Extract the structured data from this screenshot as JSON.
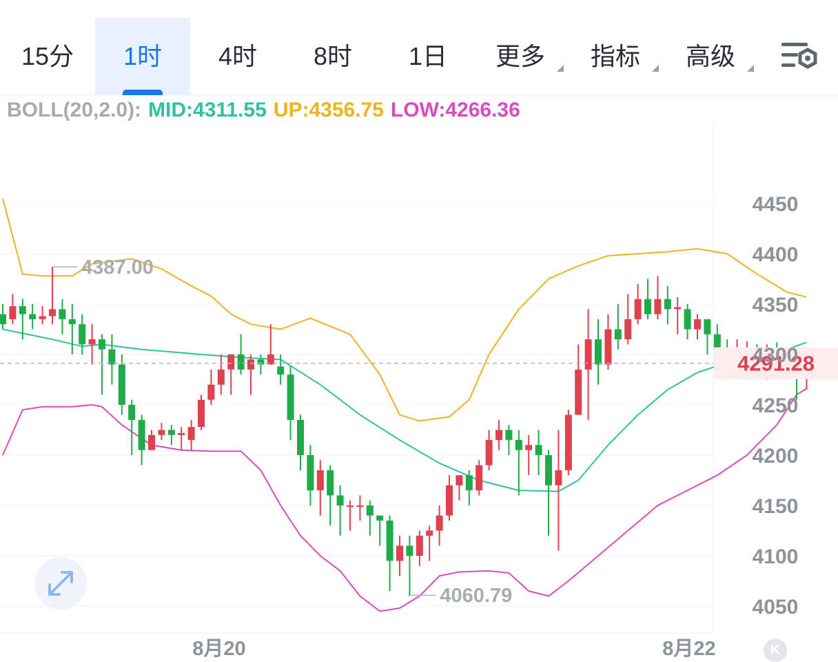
{
  "toolbar": {
    "tabs": [
      {
        "label": "15分",
        "active": false,
        "has_menu": false
      },
      {
        "label": "1时",
        "active": true,
        "has_menu": false
      },
      {
        "label": "4时",
        "active": false,
        "has_menu": false
      },
      {
        "label": "8时",
        "active": false,
        "has_menu": false
      },
      {
        "label": "1日",
        "active": false,
        "has_menu": false
      },
      {
        "label": "更多",
        "active": false,
        "has_menu": true
      },
      {
        "label": "指标",
        "active": false,
        "has_menu": true
      },
      {
        "label": "高级",
        "active": false,
        "has_menu": true
      }
    ],
    "settings_icon": "chart-settings-gear-icon"
  },
  "indicator": {
    "name": "BOLL(20,2.0):",
    "mid_label": "MID:4311.55",
    "up_label": "UP:4356.75",
    "low_label": "LOW:4266.36",
    "colors": {
      "name": "#aaaaaa",
      "mid": "#2fc1a0",
      "up": "#efb320",
      "low": "#d94cc0"
    }
  },
  "chart_data": {
    "type": "candlestick",
    "y_axis": {
      "min": 4035,
      "max": 4480,
      "ticks": [
        4450,
        4400,
        4350,
        4300,
        4250,
        4200,
        4150,
        4100,
        4050
      ]
    },
    "x_labels": [
      "8月20",
      "8月22"
    ],
    "current_price": "4291.28",
    "current_price_value": 4291.28,
    "high_marker": {
      "label": "4387.00",
      "value": 4387.0
    },
    "low_marker": {
      "label": "4060.79",
      "value": 4060.79
    },
    "colors": {
      "up_candle": "#e0414f",
      "down_candle": "#1fab4a",
      "mid_line": "#2fc1a0",
      "upper_band": "#efb320",
      "lower_band": "#d94cc0",
      "price_line": "#b5b5b5",
      "price_label_bg": "#fdecee",
      "price_label_text": "#e0414f"
    },
    "candles": [
      [
        4340,
        4330,
        4350,
        4325
      ],
      [
        4335,
        4348,
        4360,
        4330
      ],
      [
        4348,
        4340,
        4355,
        4315
      ],
      [
        4340,
        4335,
        4350,
        4325
      ],
      [
        4335,
        4338,
        4348,
        4330
      ],
      [
        4338,
        4345,
        4387,
        4330
      ],
      [
        4345,
        4335,
        4355,
        4320
      ],
      [
        4335,
        4330,
        4350,
        4300
      ],
      [
        4330,
        4310,
        4340,
        4300
      ],
      [
        4310,
        4315,
        4330,
        4290
      ],
      [
        4315,
        4305,
        4320,
        4260
      ],
      [
        4305,
        4290,
        4320,
        4270
      ],
      [
        4290,
        4250,
        4300,
        4240
      ],
      [
        4250,
        4235,
        4255,
        4200
      ],
      [
        4235,
        4205,
        4240,
        4190
      ],
      [
        4205,
        4220,
        4225,
        4210
      ],
      [
        4220,
        4225,
        4232,
        4215
      ],
      [
        4225,
        4220,
        4230,
        4210
      ],
      [
        4220,
        4222,
        4228,
        4205
      ],
      [
        4215,
        4228,
        4235,
        4205
      ],
      [
        4228,
        4255,
        4260,
        4225
      ],
      [
        4255,
        4270,
        4285,
        4250
      ],
      [
        4270,
        4285,
        4300,
        4260
      ],
      [
        4285,
        4300,
        4300,
        4260
      ],
      [
        4300,
        4285,
        4320,
        4280
      ],
      [
        4285,
        4295,
        4300,
        4260
      ],
      [
        4295,
        4290,
        4300,
        4280
      ],
      [
        4290,
        4300,
        4330,
        4290
      ],
      [
        4288,
        4280,
        4300,
        4270
      ],
      [
        4280,
        4235,
        4288,
        4215
      ],
      [
        4235,
        4200,
        4240,
        4185
      ],
      [
        4200,
        4165,
        4210,
        4150
      ],
      [
        4165,
        4185,
        4195,
        4140
      ],
      [
        4185,
        4160,
        4190,
        4130
      ],
      [
        4160,
        4150,
        4170,
        4120
      ],
      [
        4150,
        4150,
        4155,
        4125
      ],
      [
        4150,
        4150,
        4160,
        4135
      ],
      [
        4150,
        4140,
        4155,
        4120
      ],
      [
        4140,
        4135,
        4140,
        4110
      ],
      [
        4135,
        4095,
        4140,
        4065
      ],
      [
        4095,
        4110,
        4120,
        4080
      ],
      [
        4110,
        4100,
        4120,
        4060
      ],
      [
        4100,
        4120,
        4125,
        4090
      ],
      [
        4120,
        4125,
        4130,
        4095
      ],
      [
        4125,
        4140,
        4150,
        4110
      ],
      [
        4140,
        4170,
        4180,
        4135
      ],
      [
        4170,
        4180,
        4180,
        4155
      ],
      [
        4180,
        4165,
        4185,
        4150
      ],
      [
        4165,
        4190,
        4195,
        4160
      ],
      [
        4190,
        4215,
        4225,
        4185
      ],
      [
        4215,
        4225,
        4235,
        4205
      ],
      [
        4225,
        4215,
        4230,
        4200
      ],
      [
        4215,
        4205,
        4225,
        4160
      ],
      [
        4205,
        4210,
        4220,
        4180
      ],
      [
        4210,
        4200,
        4225,
        4180
      ],
      [
        4200,
        4170,
        4205,
        4120
      ],
      [
        4170,
        4185,
        4225,
        4105
      ],
      [
        4185,
        4240,
        4245,
        4180
      ],
      [
        4240,
        4285,
        4310,
        4280
      ],
      [
        4285,
        4315,
        4345,
        4235
      ],
      [
        4315,
        4290,
        4335,
        4270
      ],
      [
        4290,
        4325,
        4340,
        4285
      ],
      [
        4325,
        4315,
        4350,
        4305
      ],
      [
        4315,
        4335,
        4360,
        4310
      ],
      [
        4335,
        4355,
        4370,
        4330
      ],
      [
        4355,
        4340,
        4375,
        4335
      ],
      [
        4340,
        4355,
        4378,
        4335
      ],
      [
        4355,
        4345,
        4368,
        4330
      ],
      [
        4345,
        4347,
        4357,
        4320
      ],
      [
        4345,
        4325,
        4350,
        4315
      ],
      [
        4325,
        4335,
        4340,
        4315
      ],
      [
        4335,
        4320,
        4335,
        4300
      ],
      [
        4320,
        4305,
        4330,
        4280
      ],
      [
        4305,
        4298,
        4315,
        4290
      ],
      [
        4298,
        4305,
        4315,
        4285
      ],
      [
        4305,
        4306,
        4313,
        4290
      ],
      [
        4306,
        4300,
        4310,
        4290
      ],
      [
        4300,
        4303,
        4310,
        4275
      ],
      [
        4303,
        4295,
        4312,
        4290
      ],
      [
        4295,
        4290,
        4305,
        4285
      ],
      [
        4300,
        4280,
        4300,
        4255
      ],
      [
        4285,
        4290,
        4307,
        4265
      ],
      [
        4288,
        4292,
        4300,
        4282
      ]
    ],
    "mid_line": [
      [
        0,
        4325
      ],
      [
        5,
        4315
      ],
      [
        8,
        4308
      ],
      [
        10,
        4310
      ],
      [
        14,
        4305
      ],
      [
        20,
        4300
      ],
      [
        24,
        4297
      ],
      [
        28,
        4295
      ],
      [
        32,
        4270
      ],
      [
        36,
        4240
      ],
      [
        40,
        4215
      ],
      [
        44,
        4192
      ],
      [
        48,
        4175
      ],
      [
        52,
        4165
      ],
      [
        56,
        4164
      ],
      [
        58,
        4175
      ],
      [
        61,
        4210
      ],
      [
        64,
        4240
      ],
      [
        67,
        4265
      ],
      [
        70,
        4282
      ],
      [
        73,
        4292
      ],
      [
        76,
        4298
      ],
      [
        79,
        4305
      ],
      [
        81,
        4312
      ]
    ],
    "upper_band": [
      [
        0,
        4455
      ],
      [
        2,
        4380
      ],
      [
        4,
        4378
      ],
      [
        7,
        4378
      ],
      [
        9,
        4390
      ],
      [
        13,
        4395
      ],
      [
        16,
        4385
      ],
      [
        19,
        4368
      ],
      [
        21,
        4358
      ],
      [
        23,
        4340
      ],
      [
        25,
        4330
      ],
      [
        28,
        4325
      ],
      [
        31,
        4336
      ],
      [
        35,
        4320
      ],
      [
        38,
        4280
      ],
      [
        40,
        4240
      ],
      [
        42,
        4234
      ],
      [
        45,
        4238
      ],
      [
        47,
        4255
      ],
      [
        49,
        4300
      ],
      [
        52,
        4345
      ],
      [
        55,
        4375
      ],
      [
        58,
        4388
      ],
      [
        61,
        4398
      ],
      [
        64,
        4400
      ],
      [
        67,
        4402
      ],
      [
        70,
        4405
      ],
      [
        73,
        4400
      ],
      [
        76,
        4380
      ],
      [
        79,
        4362
      ],
      [
        81,
        4357
      ]
    ],
    "lower_band": [
      [
        0,
        4200
      ],
      [
        2,
        4245
      ],
      [
        4,
        4248
      ],
      [
        7,
        4248
      ],
      [
        9,
        4250
      ],
      [
        10,
        4248
      ],
      [
        12,
        4230
      ],
      [
        15,
        4210
      ],
      [
        18,
        4205
      ],
      [
        21,
        4204
      ],
      [
        24,
        4204
      ],
      [
        26,
        4185
      ],
      [
        28,
        4150
      ],
      [
        30,
        4120
      ],
      [
        32,
        4100
      ],
      [
        34,
        4085
      ],
      [
        36,
        4060
      ],
      [
        38,
        4045
      ],
      [
        40,
        4048
      ],
      [
        42,
        4060
      ],
      [
        44,
        4080
      ],
      [
        46,
        4084
      ],
      [
        49,
        4085
      ],
      [
        51,
        4083
      ],
      [
        53,
        4065
      ],
      [
        55,
        4060
      ],
      [
        57,
        4075
      ],
      [
        60,
        4100
      ],
      [
        63,
        4125
      ],
      [
        66,
        4150
      ],
      [
        69,
        4165
      ],
      [
        72,
        4180
      ],
      [
        75,
        4200
      ],
      [
        78,
        4230
      ],
      [
        80,
        4260
      ],
      [
        81,
        4266
      ]
    ]
  }
}
